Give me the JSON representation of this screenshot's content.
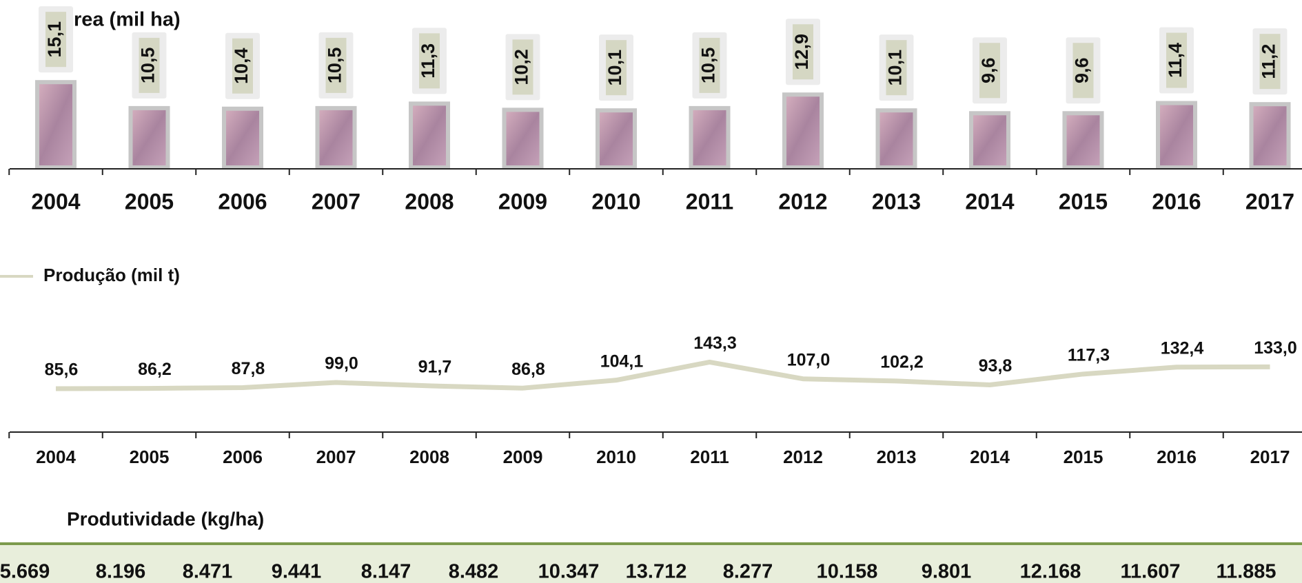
{
  "chart_data": [
    {
      "type": "bar",
      "categories": [
        "2004",
        "2005",
        "2006",
        "2007",
        "2008",
        "2009",
        "2010",
        "2011",
        "2012",
        "2013",
        "2014",
        "2015",
        "2016",
        "2017"
      ],
      "series": [
        {
          "name": "Área (mil ha)",
          "color": "#b48aa6",
          "values": [
            15.1,
            10.5,
            10.4,
            10.5,
            11.3,
            10.2,
            10.1,
            10.5,
            12.9,
            10.1,
            9.6,
            9.6,
            11.4,
            11.2
          ],
          "value_labels": [
            "15,1",
            "10,5",
            "10,4",
            "10,5",
            "11,3",
            "10,2",
            "10,1",
            "10,5",
            "12,9",
            "10,1",
            "9,6",
            "9,6",
            "11,4",
            "11,2"
          ]
        }
      ]
    },
    {
      "type": "line",
      "categories": [
        "2004",
        "2005",
        "2006",
        "2007",
        "2008",
        "2009",
        "2010",
        "2011",
        "2012",
        "2013",
        "2014",
        "2015",
        "2016",
        "2017"
      ],
      "series": [
        {
          "name": "Produção (mil t)",
          "color": "#d8d8c2",
          "values": [
            85.6,
            86.2,
            87.8,
            99.0,
            91.7,
            86.8,
            104.1,
            143.3,
            107.0,
            102.2,
            93.8,
            117.3,
            132.4,
            133.0
          ],
          "value_labels": [
            "85,6",
            "86,2",
            "87,8",
            "99,0",
            "91,7",
            "86,8",
            "104,1",
            "143,3",
            "107,0",
            "102,2",
            "93,8",
            "117,3",
            "132,4",
            "133,0"
          ]
        }
      ]
    },
    {
      "type": "table",
      "title": "Produtividade (kg/ha)",
      "color": "#e8eedb",
      "values": [
        5669,
        8196,
        8471,
        9441,
        8147,
        8482,
        10347,
        13712,
        8277,
        10158,
        9801,
        12168,
        11607,
        11885
      ],
      "value_labels": [
        "5.669",
        "8.196",
        "8.471",
        "9.441",
        "8.147",
        "8.482",
        "10.347",
        "13.712",
        "8.277",
        "10.158",
        "9.801",
        "12.168",
        "11.607",
        "11.885"
      ]
    }
  ]
}
